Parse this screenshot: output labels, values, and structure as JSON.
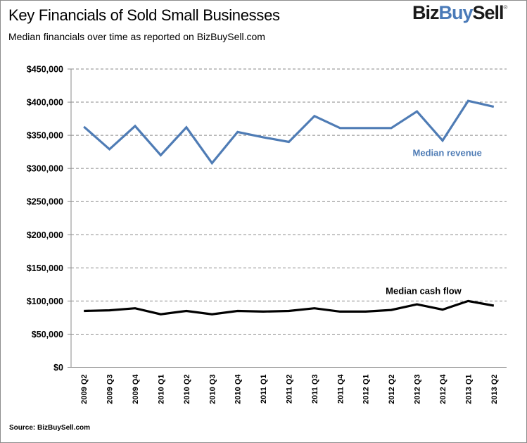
{
  "header": {
    "title": "Key Financials of Sold Small Businesses",
    "subtitle": "Median financials over time as reported  on  BizBuySell.com",
    "logo": {
      "part1": "Biz",
      "part2": "Buy",
      "part3": "Sell",
      "registered": "®"
    }
  },
  "footer": {
    "source": "Source: BizBuySell.com"
  },
  "colors": {
    "revenue": "#4f7cb5",
    "cash_flow": "#000000",
    "gridline": "#8a8a8a",
    "axis": "#8a8a8a",
    "logo_accent": "#4a7ab8"
  },
  "chart_data": {
    "type": "line",
    "title": "Key Financials of Sold Small Businesses",
    "subtitle": "Median financials over time as reported on BizBuySell.com",
    "xlabel": "",
    "ylabel": "",
    "ylim": [
      0,
      450000
    ],
    "y_ticks": [
      0,
      50000,
      100000,
      150000,
      200000,
      250000,
      300000,
      350000,
      400000,
      450000
    ],
    "y_tick_labels": [
      "$0",
      "$50,000",
      "$100,000",
      "$150,000",
      "$200,000",
      "$250,000",
      "$300,000",
      "$350,000",
      "$400,000",
      "$450,000"
    ],
    "grid": true,
    "legend": "inline-annotations",
    "categories": [
      "2009 Q2",
      "2009 Q3",
      "2009 Q4",
      "2010 Q1",
      "2010 Q2",
      "2010 Q3",
      "2010 Q4",
      "2011 Q1",
      "2011 Q2",
      "2011 Q3",
      "2011 Q4",
      "2012 Q1",
      "2012 Q2",
      "2012 Q3",
      "2012 Q4",
      "2013 Q1",
      "2013 Q2"
    ],
    "series": [
      {
        "name": "Median revenue",
        "color": "#4f7cb5",
        "values": [
          363000,
          329000,
          364000,
          320000,
          362000,
          308000,
          355000,
          347000,
          340000,
          379000,
          361000,
          361000,
          361000,
          386000,
          342000,
          402000,
          393000
        ]
      },
      {
        "name": "Median cash flow",
        "color": "#000000",
        "values": [
          85000,
          86000,
          89000,
          80000,
          85000,
          80000,
          85000,
          84000,
          85000,
          89000,
          84000,
          84000,
          86500,
          95000,
          87000,
          100000,
          93000
        ]
      }
    ],
    "annotations": [
      {
        "text": "Median revenue",
        "series": "Median revenue"
      },
      {
        "text": "Median cash flow",
        "series": "Median cash flow"
      }
    ]
  }
}
